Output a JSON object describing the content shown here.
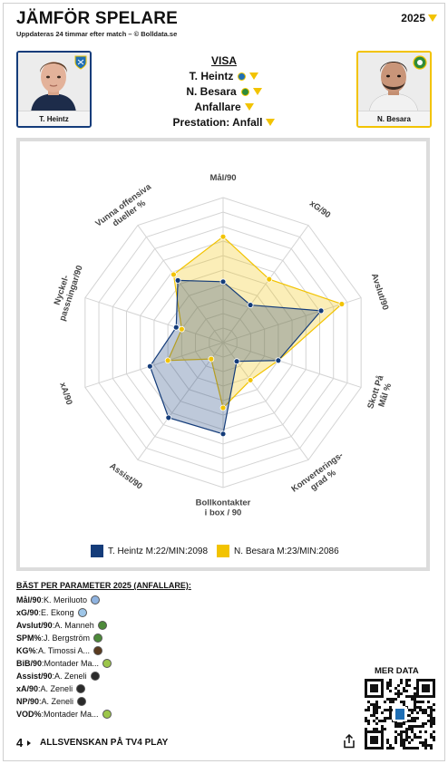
{
  "header": {
    "title": "JÄMFÖR SPELARE",
    "subtitle": "Uppdateras 24 timmar efter match – © Bolldata.se",
    "year": "2025"
  },
  "players": {
    "left": {
      "name": "T. Heintz",
      "color": "#143c7a"
    },
    "right": {
      "name": "N. Besara",
      "color": "#f2c300"
    }
  },
  "selectors": {
    "visa_label": "VISA",
    "player1": "T. Heintz",
    "player2": "N. Besara",
    "position": "Anfallare",
    "stat_group": "Prestation: Anfall"
  },
  "chart_data": {
    "type": "radar",
    "axes": [
      "Mål/90",
      "xG/90",
      "Avslut/90",
      "Skott På Mål %",
      "Konverterings-grad %",
      "Bollkontakter i box / 90",
      "Assist/90",
      "xA/90",
      "Nyckel-passningar/90",
      "Vunna offensiva dueller %"
    ],
    "axis_labels": [
      [
        "Mål/90"
      ],
      [
        "xG/90"
      ],
      [
        "Avslut/90"
      ],
      [
        "Skott På",
        "Mål %"
      ],
      [
        "Konverterings-",
        "grad %"
      ],
      [
        "Bollkontakter",
        "i box / 90"
      ],
      [
        "Assist/90"
      ],
      [
        "xA/90"
      ],
      [
        "Nyckel-",
        "passningar/90"
      ],
      [
        "Vunna offensiva",
        "dueller %"
      ]
    ],
    "range": [
      0,
      10
    ],
    "rings": 10,
    "series": [
      {
        "name": "T. Heintz M:22/MIN:2098",
        "color": "#143c7a",
        "values": [
          4.2,
          3.2,
          7.1,
          4.0,
          1.6,
          6.3,
          6.4,
          5.3,
          3.4,
          5.3
        ]
      },
      {
        "name": "N. Besara M:23/MIN:2086",
        "color": "#f2c300",
        "values": [
          7.3,
          5.4,
          8.6,
          4.0,
          3.2,
          4.5,
          1.4,
          4.0,
          3.0,
          5.8
        ]
      }
    ]
  },
  "best": {
    "title": "BÄST PER PARAMETER 2025 (ANFALLARE):",
    "rows": [
      {
        "param": "Mål/90",
        "player": "K. Meriluoto",
        "club_color": "#8fb3e0"
      },
      {
        "param": "xG/90",
        "player": "E. Ekong",
        "club_color": "#9ec6e8"
      },
      {
        "param": "Avslut/90",
        "player": "A. Manneh",
        "club_color": "#4d8a3a"
      },
      {
        "param": "SPM%",
        "player": "J. Bergström",
        "club_color": "#4d8a3a"
      },
      {
        "param": "KG%",
        "player": "A. Timossi A...",
        "club_color": "#5a3b1f"
      },
      {
        "param": "BiB/90",
        "player": "Montader Ma...",
        "club_color": "#9cc64a"
      },
      {
        "param": "Assist/90",
        "player": "A. Zeneli",
        "club_color": "#2b2b2b"
      },
      {
        "param": "xA/90",
        "player": "A. Zeneli",
        "club_color": "#2b2b2b"
      },
      {
        "param": "NP/90",
        "player": "A. Zeneli",
        "club_color": "#2b2b2b"
      },
      {
        "param": "VOD%",
        "player": "Montader Ma...",
        "club_color": "#9cc64a"
      }
    ]
  },
  "footer": {
    "tv4_logo": "4",
    "promo": "ALLSVENSKAN PÅ TV4 PLAY",
    "more_data": "MER DATA"
  },
  "icons": [
    "tv4-logo-icon",
    "share-icon",
    "qr-code-icon",
    "dropdown-arrow-icon"
  ]
}
